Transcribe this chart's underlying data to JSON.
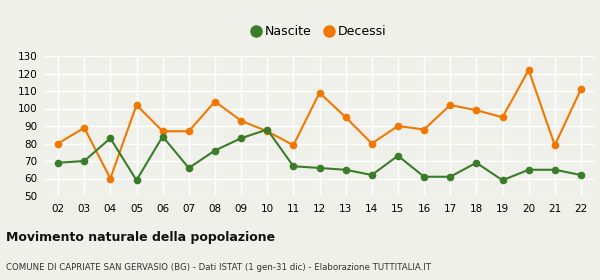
{
  "years": [
    "02",
    "03",
    "04",
    "05",
    "06",
    "07",
    "08",
    "09",
    "10",
    "11",
    "12",
    "13",
    "14",
    "15",
    "16",
    "17",
    "18",
    "19",
    "20",
    "21",
    "22"
  ],
  "nascite": [
    69,
    70,
    83,
    59,
    84,
    66,
    76,
    83,
    88,
    67,
    66,
    65,
    62,
    73,
    61,
    61,
    69,
    59,
    65,
    65,
    62
  ],
  "decessi": [
    80,
    89,
    60,
    102,
    87,
    87,
    104,
    93,
    87,
    79,
    109,
    95,
    80,
    90,
    88,
    102,
    99,
    95,
    122,
    79,
    111
  ],
  "nascite_color": "#3a7d28",
  "decessi_color": "#f07800",
  "bg_color": "#f0f0eb",
  "ylim": [
    50,
    130
  ],
  "yticks": [
    50,
    60,
    70,
    80,
    90,
    100,
    110,
    120,
    130
  ],
  "title": "Movimento naturale della popolazione",
  "subtitle": "COMUNE DI CAPRIATE SAN GERVASIO (BG) - Dati ISTAT (1 gen-31 dic) - Elaborazione TUTTITALIA.IT",
  "legend_nascite": "Nascite",
  "legend_decessi": "Decessi"
}
